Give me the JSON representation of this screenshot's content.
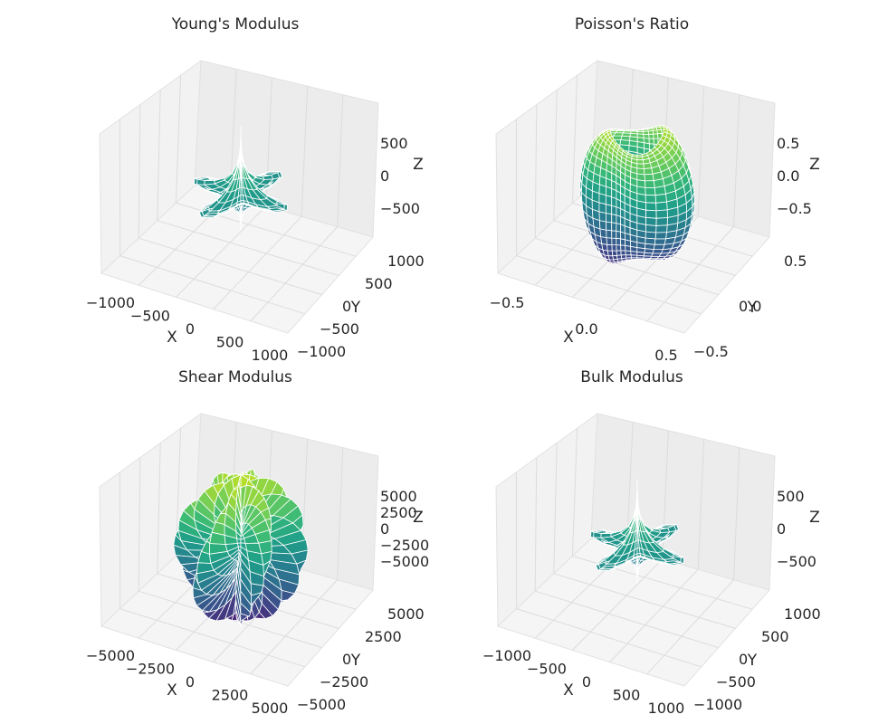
{
  "chart_data": [
    {
      "type": "surface3d",
      "title": "Young's Modulus",
      "xlabel": "X",
      "ylabel": "Y",
      "zlabel": "Z",
      "xticks": [
        "−1000",
        "−500",
        "0",
        "500",
        "1000"
      ],
      "yticks": [
        "1000",
        "500",
        "0",
        "−500",
        "−1000"
      ],
      "zticks": [
        "500",
        "0",
        "−500"
      ],
      "xlim": [
        -1100,
        1100
      ],
      "ylim": [
        -1100,
        1100
      ],
      "zlim": [
        -950,
        950
      ],
      "shape": "star",
      "lobe_extent": 900,
      "vertical_extent": 750,
      "lobes": 4,
      "dip_extent": -400,
      "colormap": "viridis",
      "grid": true
    },
    {
      "type": "surface3d",
      "title": "Poisson's Ratio",
      "xlabel": "X",
      "ylabel": "Y",
      "zlabel": "Z",
      "xticks": [
        "−0.5",
        "0.0",
        "0.5"
      ],
      "yticks": [
        "0.5",
        "0.0",
        "−0.5"
      ],
      "zticks": [
        "0.5",
        "0.0",
        "−0.5"
      ],
      "xlim": [
        -0.8,
        0.8
      ],
      "ylim": [
        -0.8,
        0.8
      ],
      "zlim": [
        -0.8,
        0.8
      ],
      "shape": "torus-blob",
      "lobe_extent": 0.7,
      "vertical_extent": 0.6,
      "colormap": "viridis",
      "grid": true
    },
    {
      "type": "surface3d",
      "title": "Shear Modulus",
      "xlabel": "X",
      "ylabel": "Y",
      "zlabel": "Z",
      "xticks": [
        "−5000",
        "−2500",
        "0",
        "2500",
        "5000"
      ],
      "yticks": [
        "5000",
        "2500",
        "0",
        "−2500",
        "−5000"
      ],
      "zticks": [
        "5000",
        "2500",
        "0",
        "−2500",
        "−5000"
      ],
      "xlim": [
        -6500,
        6500
      ],
      "ylim": [
        -6500,
        6500
      ],
      "zlim": [
        -6500,
        6500
      ],
      "shape": "petals",
      "lobe_extent": 6000,
      "vertical_extent": 5500,
      "lobes": 6,
      "colormap": "viridis",
      "grid": true
    },
    {
      "type": "surface3d",
      "title": "Bulk Modulus",
      "xlabel": "X",
      "ylabel": "Y",
      "zlabel": "Z",
      "xticks": [
        "−1000",
        "−500",
        "0",
        "500",
        "1000"
      ],
      "yticks": [
        "1000",
        "500",
        "0",
        "−500",
        "−1000"
      ],
      "zticks": [
        "500",
        "0",
        "−500"
      ],
      "xlim": [
        -1100,
        1100
      ],
      "ylim": [
        -1100,
        1100
      ],
      "zlim": [
        -950,
        950
      ],
      "shape": "star",
      "lobe_extent": 900,
      "vertical_extent": 750,
      "lobes": 4,
      "dip_extent": -400,
      "colormap": "viridis",
      "grid": true
    }
  ]
}
